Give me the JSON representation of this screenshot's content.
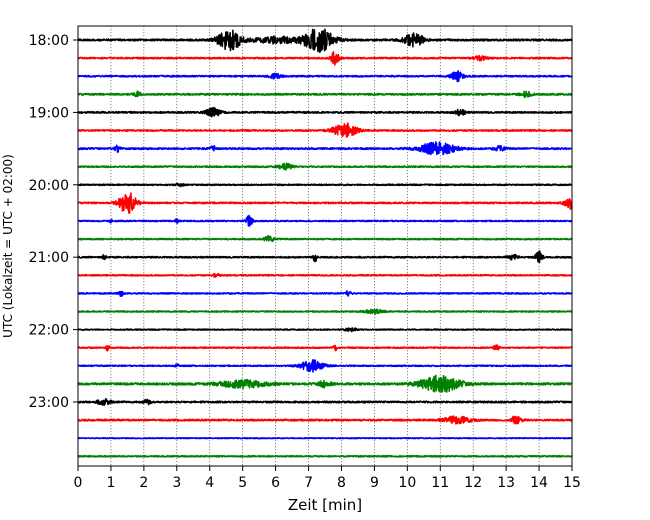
{
  "chart_data": {
    "type": "line",
    "title": "",
    "xlabel": "Zeit  [min]",
    "ylabel": "UTC (Lokalzeit = UTC + 02:00)",
    "xlim": [
      0,
      15
    ],
    "x_ticks": [
      "0",
      "1",
      "2",
      "3",
      "4",
      "5",
      "6",
      "7",
      "8",
      "9",
      "10",
      "11",
      "12",
      "13",
      "14",
      "15"
    ],
    "y_ticks": [
      {
        "label": "18:00",
        "trace": 0
      },
      {
        "label": "19:00",
        "trace": 4
      },
      {
        "label": "20:00",
        "trace": 8
      },
      {
        "label": "21:00",
        "trace": 12
      },
      {
        "label": "22:00",
        "trace": 16
      },
      {
        "label": "23:00",
        "trace": 20
      }
    ],
    "grid": "vertical dotted at each minute",
    "color_cycle": [
      "#000000",
      "#ff0000",
      "#0000ff",
      "#008000"
    ],
    "traces": [
      {
        "start": "18:00",
        "noise": 0.9,
        "events": [
          [
            4.6,
            2.6,
            0.35
          ],
          [
            7.3,
            3.0,
            0.45
          ],
          [
            10.2,
            1.6,
            0.3
          ],
          [
            6.0,
            0.8,
            0.6
          ]
        ]
      },
      {
        "start": "18:15",
        "noise": 0.7,
        "events": [
          [
            7.8,
            1.6,
            0.12
          ],
          [
            12.2,
            0.6,
            0.2
          ]
        ]
      },
      {
        "start": "18:30",
        "noise": 0.7,
        "events": [
          [
            6.0,
            0.6,
            0.2
          ],
          [
            11.5,
            1.2,
            0.18
          ]
        ]
      },
      {
        "start": "18:45",
        "noise": 0.8,
        "events": [
          [
            1.8,
            0.6,
            0.1
          ],
          [
            13.6,
            0.7,
            0.15
          ]
        ]
      },
      {
        "start": "19:00",
        "noise": 0.8,
        "events": [
          [
            4.1,
            1.1,
            0.2
          ],
          [
            11.6,
            0.7,
            0.15
          ]
        ]
      },
      {
        "start": "19:15",
        "noise": 0.7,
        "events": [
          [
            8.1,
            1.8,
            0.35
          ]
        ]
      },
      {
        "start": "19:30",
        "noise": 0.8,
        "events": [
          [
            1.2,
            0.7,
            0.08
          ],
          [
            4.1,
            0.6,
            0.08
          ],
          [
            10.9,
            1.5,
            0.55
          ],
          [
            12.8,
            0.6,
            0.15
          ]
        ]
      },
      {
        "start": "19:45",
        "noise": 0.7,
        "events": [
          [
            6.3,
            0.7,
            0.2
          ]
        ]
      },
      {
        "start": "20:00",
        "noise": 0.6,
        "events": [
          [
            3.1,
            0.5,
            0.1
          ]
        ]
      },
      {
        "start": "20:15",
        "noise": 0.7,
        "events": [
          [
            1.5,
            2.8,
            0.25
          ],
          [
            15.0,
            1.5,
            0.2
          ]
        ]
      },
      {
        "start": "20:30",
        "noise": 0.6,
        "events": [
          [
            1.0,
            0.5,
            0.05
          ],
          [
            3.0,
            0.6,
            0.05
          ],
          [
            5.2,
            1.4,
            0.1
          ]
        ]
      },
      {
        "start": "20:45",
        "noise": 0.6,
        "events": [
          [
            5.8,
            0.7,
            0.15
          ]
        ]
      },
      {
        "start": "21:00",
        "noise": 0.7,
        "events": [
          [
            0.8,
            0.8,
            0.05
          ],
          [
            7.2,
            1.2,
            0.05
          ],
          [
            13.2,
            0.6,
            0.15
          ],
          [
            14.0,
            1.5,
            0.1
          ]
        ]
      },
      {
        "start": "21:15",
        "noise": 0.6,
        "events": [
          [
            4.2,
            0.5,
            0.1
          ]
        ]
      },
      {
        "start": "21:30",
        "noise": 0.6,
        "events": [
          [
            1.3,
            0.9,
            0.08
          ],
          [
            8.2,
            0.8,
            0.08
          ]
        ]
      },
      {
        "start": "21:45",
        "noise": 0.6,
        "events": [
          [
            9.0,
            0.5,
            0.3
          ]
        ]
      },
      {
        "start": "22:00",
        "noise": 0.5,
        "events": [
          [
            8.3,
            0.4,
            0.2
          ]
        ]
      },
      {
        "start": "22:15",
        "noise": 0.6,
        "events": [
          [
            0.9,
            0.8,
            0.05
          ],
          [
            7.8,
            0.9,
            0.05
          ],
          [
            12.7,
            0.6,
            0.1
          ]
        ]
      },
      {
        "start": "22:30",
        "noise": 0.6,
        "events": [
          [
            7.1,
            1.4,
            0.35
          ],
          [
            3.0,
            0.5,
            0.05
          ]
        ]
      },
      {
        "start": "22:45",
        "noise": 1.0,
        "events": [
          [
            11.0,
            2.0,
            0.6
          ],
          [
            5.0,
            0.9,
            0.7
          ],
          [
            7.5,
            0.8,
            0.2
          ]
        ]
      },
      {
        "start": "23:00",
        "noise": 0.8,
        "events": [
          [
            0.8,
            0.7,
            0.2
          ],
          [
            2.1,
            0.7,
            0.1
          ]
        ]
      },
      {
        "start": "23:15",
        "noise": 0.8,
        "events": [
          [
            11.5,
            0.9,
            0.4
          ],
          [
            13.3,
            1.0,
            0.15
          ]
        ]
      },
      {
        "start": "23:30",
        "noise": 0.4,
        "events": []
      },
      {
        "start": "23:45",
        "noise": 0.6,
        "events": []
      }
    ]
  }
}
